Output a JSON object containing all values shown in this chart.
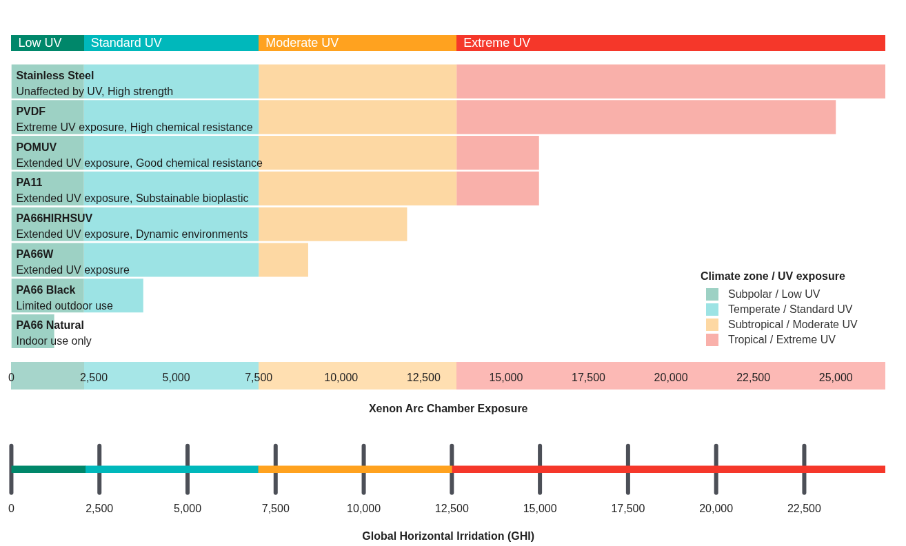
{
  "chart_data": [
    {
      "type": "bar",
      "orientation": "horizontal",
      "stacked": true,
      "categories": [
        "Stainless Steel\nUnaffected by UV, High strength",
        "PVDF\nExtreme UV exposure, High chemical resistance",
        "POMUV\nExtended UV exposure, Good chemical resistance",
        "PA11\nExtended UV exposure, Substainable bioplastic",
        "PA66HIRHSUV\nExtended UV exposure, Dynamic environments",
        "PA66W\nExtended UV exposure",
        "PA66 Black\nLimited outdoor use",
        "PA66 Natural\nIndoor use only"
      ],
      "series": [
        {
          "name": "Subpolar / Low UV",
          "color": "#9dd1c4",
          "values": [
            2200,
            2200,
            2200,
            2200,
            2200,
            2200,
            2200,
            1300
          ]
        },
        {
          "name": "Temperate / Standard UV",
          "color": "#9ce3e4",
          "values": [
            5300,
            5300,
            5300,
            5300,
            5300,
            5300,
            1800,
            null
          ]
        },
        {
          "name": "Subtropical / Moderate UV",
          "color": "#fdd8a3",
          "values": [
            6000,
            6000,
            6000,
            6000,
            4500,
            1500,
            null,
            null
          ]
        },
        {
          "name": "Tropical / Extreme UV",
          "color": "#f9b0aa",
          "values": [
            13000,
            11500,
            2500,
            2500,
            null,
            null,
            null,
            null
          ]
        }
      ],
      "xlim": [
        0,
        26500
      ],
      "xticks": [
        0,
        {
          "value": 2500,
          "label": "2,500"
        },
        {
          "value": 5000,
          "label": "5,000"
        },
        {
          "value": 7500,
          "label": "7,500"
        },
        {
          "value": 10000,
          "label": "10,000"
        },
        {
          "value": 12500,
          "label": "12,500"
        },
        {
          "value": 15000,
          "label": "15,000"
        },
        {
          "value": 17500,
          "label": "17,500"
        },
        {
          "value": 20000,
          "label": "20,000"
        },
        {
          "value": 22500,
          "label": "22,500"
        },
        {
          "value": 25000,
          "label": "25,000"
        }
      ],
      "xlabel": "Xenon Arc Chamber Exposure",
      "annotations": [
        "Low UV",
        "Standard UV",
        "Moderate UV",
        "Extreme UV"
      ],
      "legend": "bottom right",
      "legend_title": "Climate zone / UV exposure",
      "grid": false
    },
    {
      "type": "bar",
      "orientation": "horizontal",
      "stacked": true,
      "categories": [
        null
      ],
      "series": [
        {
          "color": "#00876a",
          "values": [
            2100
          ]
        },
        {
          "color": "#00b8bb",
          "values": [
            4900
          ]
        },
        {
          "color": "#ffa21f",
          "values": [
            5500
          ]
        },
        {
          "color": "#f5372a",
          "values": [
            12300
          ]
        }
      ],
      "xlim": [
        0,
        24800
      ],
      "xticks": [
        0,
        {
          "value": 2500,
          "label": "2,500"
        },
        {
          "value": 5000,
          "label": "5,000"
        },
        {
          "value": 7500,
          "label": "7,500"
        },
        {
          "value": 10000,
          "label": "10,000"
        },
        {
          "value": 12500,
          "label": "12,500"
        },
        {
          "value": 15000,
          "label": "15,000"
        },
        {
          "value": 17500,
          "label": "17,500"
        },
        {
          "value": 20000,
          "label": "20,000"
        },
        {
          "value": 22500,
          "label": "22,500"
        }
      ],
      "xlabel": "Global Horizontal Irridation (GHI)",
      "grid": "x"
    }
  ]
}
